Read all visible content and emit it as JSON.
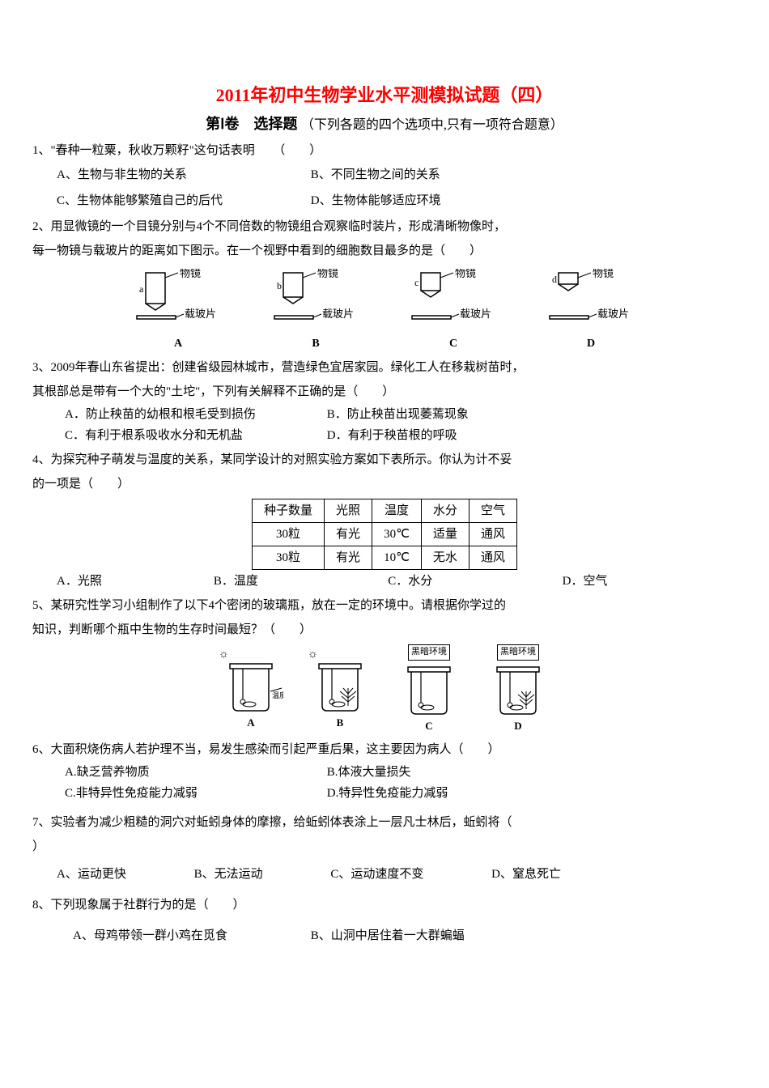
{
  "title": "2011年初中生物学业水平测模拟试题（四）",
  "section": "第Ⅰ卷",
  "section_label": "选择题",
  "section_note": "（下列各题的四个选项中,只有一项符合题意）",
  "q1": {
    "stem": "1、\"春种一粒粟，秋收万颗籽\"这句话表明　　（　　）",
    "A": "A、生物与非生物的关系",
    "B": "B、不同生物之间的关系",
    "C": "C、生物体能够繁殖自己的后代",
    "D": "D、生物体能够适应环境"
  },
  "q2": {
    "stem1": "2、用显微镜的一个目镜分别与4个不同倍数的物镜组合观察临时装片，形成清晰物像时，",
    "stem2": "每一物镜与载玻片的距离如下图示。在一个视野中看到的细胞数目最多的是（　　）",
    "lens_label": "物镜",
    "slide_label": "载玻片",
    "labels": [
      "A",
      "B",
      "C",
      "D"
    ],
    "letters": [
      "a",
      "b",
      "c",
      "d"
    ],
    "heights": [
      38,
      30,
      22,
      14
    ]
  },
  "q3": {
    "stem1": "3、2009年春山东省提出：创建省级园林城市，营造绿色宜居家园。绿化工人在移栽树苗时，",
    "stem2": "其根部总是带有一个大的\"土坨\"，下列有关解释不正确的是（　　）",
    "A": "A．防止秧苗的幼根和根毛受到损伤",
    "B": "B．防止秧苗出现萎蔫现象",
    "C": "C．有利于根系吸收水分和无机盐",
    "D": "D．有利于秧苗根的呼吸"
  },
  "q4": {
    "stem1": "4、为探究种子萌发与温度的关系，某同学设计的对照实验方案如下表所示。你认为计不妥",
    "stem2": "的一项是（　　）",
    "headers": [
      "种子数量",
      "光照",
      "温度",
      "水分",
      "空气"
    ],
    "row1": [
      "30粒",
      "有光",
      "30℃",
      "适量",
      "通风"
    ],
    "row2": [
      "30粒",
      "有光",
      "10℃",
      "无水",
      "通风"
    ],
    "A": "A．光照",
    "B": "B．温度",
    "C": "C．水分",
    "D": "D．空气"
  },
  "q5": {
    "stem1": "5、某研究性学习小组制作了以下4个密闭的玻璃瓶，放在一定的环境中。请根据你学过的",
    "stem2": "知识，判断哪个瓶中生物的生存时间最短？（　　）",
    "sun": "☀",
    "dark": "黑暗环境",
    "thermo": "温度计",
    "labels": [
      "A",
      "B",
      "C",
      "D"
    ]
  },
  "q6": {
    "stem": "6、大面积烧伤病人若护理不当，易发生感染而引起严重后果，这主要因为病人（　　）",
    "A": "A.缺乏营养物质",
    "B": "B.体液大量损失",
    "C": "C.非特异性免疫能力减弱",
    "D": "D.特异性免疫能力减弱"
  },
  "q7": {
    "stem": "7、实验者为减少粗糙的洞穴对蚯蚓身体的摩擦，给蚯蚓体表涂上一层凡士林后，蚯蚓将（　",
    "stem_end": "）",
    "A": "A、运动更快",
    "B": "B、无法运动",
    "C": "C、运动速度不变",
    "D": "D、窒息死亡"
  },
  "q8": {
    "stem": "8、下列现象属于社群行为的是（　　）",
    "A": "A、母鸡带领一群小鸡在觅食",
    "B": "B、山洞中居住着一大群蝙蝠"
  }
}
